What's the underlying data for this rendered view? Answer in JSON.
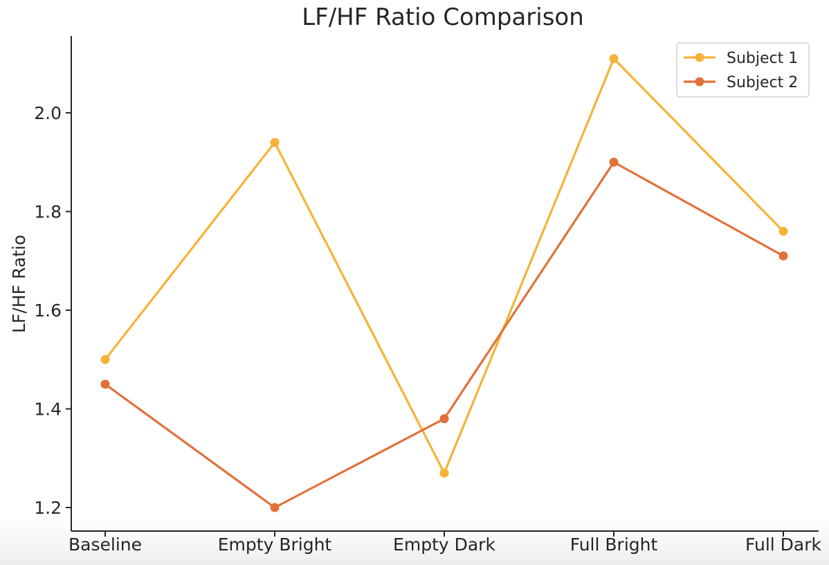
{
  "chart_data": {
    "type": "line",
    "title": "LF/HF Ratio Comparison",
    "xlabel": "",
    "ylabel": "LF/HF Ratio",
    "categories": [
      "Baseline",
      "Empty Bright",
      "Empty Dark",
      "Full Bright",
      "Full Dark"
    ],
    "y_ticks": [
      "1.2",
      "1.4",
      "1.6",
      "1.8",
      "2.0"
    ],
    "ylim": [
      1.155,
      2.155
    ],
    "grid": false,
    "legend_position": "top-right",
    "series": [
      {
        "name": "Subject 1",
        "color": "#F5B335",
        "values": [
          1.5,
          1.94,
          1.27,
          2.11,
          1.76
        ]
      },
      {
        "name": "Subject 2",
        "color": "#E2703A",
        "values": [
          1.45,
          1.2,
          1.38,
          1.9,
          1.71
        ]
      }
    ]
  }
}
